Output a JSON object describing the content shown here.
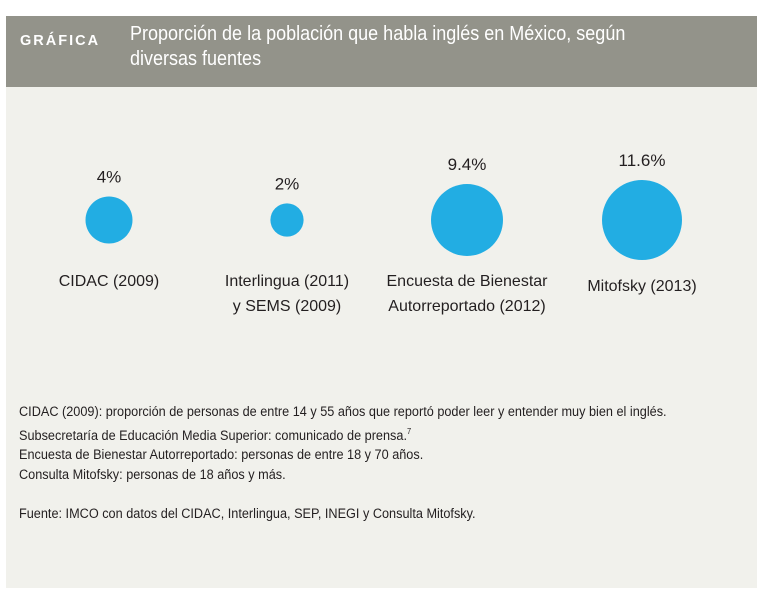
{
  "header": {
    "kicker": "GRÁFICA",
    "title": "Proporción de la población que habla inglés en México, según diversas fuentes"
  },
  "colors": {
    "header_bg": "#93938a",
    "panel_bg": "#f1f1ec",
    "bubble": "#22ade3",
    "text": "#231f20"
  },
  "chart_data": {
    "type": "bubble",
    "title": "Proporción de la población que habla inglés en México, según diversas fuentes",
    "unit": "%",
    "categories": [
      [
        "CIDAC (2009)"
      ],
      [
        "Interlingua (2011)",
        "y SEMS (2009)"
      ],
      [
        "Encuesta de Bienestar",
        "Autorreportado (2012)"
      ],
      [
        "Mitofsky (2013)"
      ]
    ],
    "values": [
      4,
      2,
      9.4,
      11.6
    ],
    "value_labels": [
      "4%",
      "2%",
      "9.4%",
      "11.6%"
    ],
    "bubble_area_proportional_to_value": true
  },
  "notes": {
    "lines": [
      "CIDAC (2009): proporción de personas de entre 14 y 55 años que reportó poder leer y entender muy bien el inglés.",
      "Subsecretaría de Educación Media Superior: comunicado de prensa.",
      "Encuesta de Bienestar Autorreportado: personas de entre 18 y 70 años.",
      "Consulta Mitofsky: personas de 18 años y más."
    ],
    "footnote_marker": "7",
    "source": "Fuente: IMCO con datos del CIDAC, Interlingua, SEP, INEGI y Consulta Mitofsky."
  }
}
